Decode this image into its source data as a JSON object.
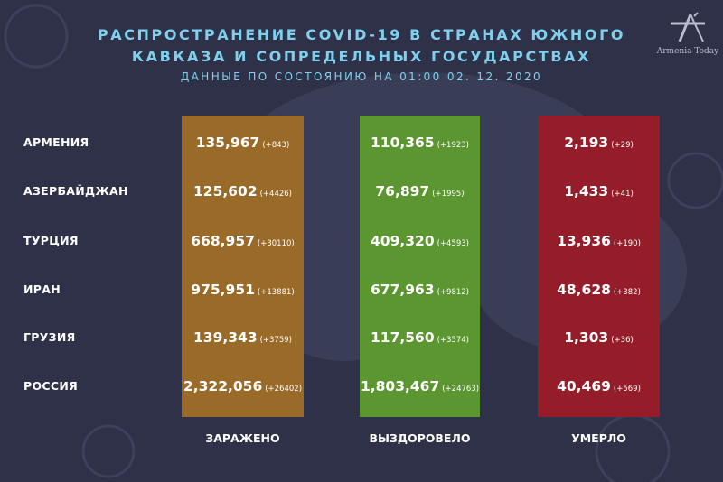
{
  "title_line1": "РАСПРОСТРАНЕНИЕ COVID-19 В СТРАНАХ ЮЖНОГО",
  "title_line2": "КАВКАЗА И СОПРЕДЕЛЬНЫХ ГОСУДАРСТВАХ",
  "subtitle": "ДАННЫЕ ПО СОСТОЯНИЮ НА 01:00   02. 12. 2020",
  "logo_text": "Armenia Today",
  "colors": {
    "background": "#2f3148",
    "title": "#7fd0ec",
    "infected": "#9a6a28",
    "recovered": "#5c9630",
    "deaths": "#951d29"
  },
  "chart_data": {
    "type": "table",
    "columns": [
      "ЗАРАЖЕНО",
      "ВЫЗДОРОВЕЛО",
      "УМЕРЛО"
    ],
    "rows": [
      {
        "country": "АРМЕНИЯ",
        "infected": "135,967",
        "infected_delta": "(+843)",
        "recovered": "110,365",
        "recovered_delta": "(+1923)",
        "deaths": "2,193",
        "deaths_delta": "(+29)"
      },
      {
        "country": "АЗЕРБАЙДЖАН",
        "infected": "125,602",
        "infected_delta": "(+4426)",
        "recovered": "76,897",
        "recovered_delta": "(+1995)",
        "deaths": "1,433",
        "deaths_delta": "(+41)"
      },
      {
        "country": "ТУРЦИЯ",
        "infected": "668,957",
        "infected_delta": "(+30110)",
        "recovered": "409,320",
        "recovered_delta": "(+4593)",
        "deaths": "13,936",
        "deaths_delta": "(+190)"
      },
      {
        "country": "ИРАН",
        "infected": "975,951",
        "infected_delta": "(+13881)",
        "recovered": "677,963",
        "recovered_delta": "(+9812)",
        "deaths": "48,628",
        "deaths_delta": "(+382)"
      },
      {
        "country": "ГРУЗИЯ",
        "infected": "139,343",
        "infected_delta": "(+3759)",
        "recovered": "117,560",
        "recovered_delta": "(+3574)",
        "deaths": "1,303",
        "deaths_delta": "(+36)"
      },
      {
        "country": "РОССИЯ",
        "infected": "2,322,056",
        "infected_delta": "(+26402)",
        "recovered": "1,803,467",
        "recovered_delta": "(+24763)",
        "deaths": "40,469",
        "deaths_delta": "(+569)"
      }
    ]
  }
}
